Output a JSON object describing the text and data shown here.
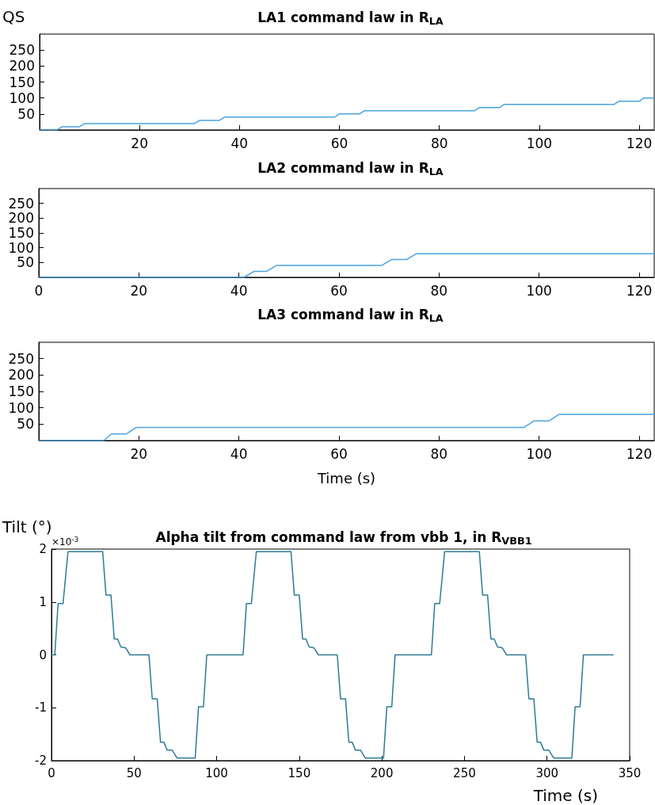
{
  "chart_data": [
    {
      "type": "line",
      "title": "LA1 command law in R$_{LA}$",
      "ylabel": "QS",
      "color": "#4aa3df",
      "line_style": "solid",
      "marker": "none",
      "grid": false,
      "x": [
        0,
        3.5,
        4.5,
        8,
        9,
        31,
        32,
        36,
        37,
        59,
        60,
        64,
        65,
        87,
        88,
        92,
        93,
        115,
        116,
        120,
        121,
        123
      ],
      "values": [
        0,
        0,
        10,
        10,
        20,
        20,
        30,
        30,
        40,
        40,
        50,
        50,
        60,
        60,
        70,
        70,
        80,
        80,
        90,
        90,
        100,
        100
      ],
      "xlim": [
        0,
        123
      ],
      "xticks": [
        20,
        40,
        60,
        80,
        100,
        120
      ],
      "ylim": [
        0,
        300
      ],
      "yticks": [
        50,
        100,
        150,
        200,
        250
      ]
    },
    {
      "type": "line",
      "title": "LA2 command law in R$_{LA}$",
      "color": "#4aa3df",
      "line_style": "solid",
      "marker": "none",
      "grid": false,
      "x": [
        0,
        41,
        43,
        45.5,
        47.5,
        68.5,
        70.5,
        73.5,
        75.5,
        123
      ],
      "values": [
        0,
        0,
        20,
        20,
        40,
        40,
        60,
        60,
        80,
        80
      ],
      "xlim": [
        0,
        123
      ],
      "xticks": [
        0,
        20,
        40,
        60,
        80,
        100,
        120
      ],
      "ylim": [
        0,
        300
      ],
      "yticks": [
        50,
        100,
        150,
        200,
        250
      ]
    },
    {
      "type": "line",
      "title": "LA3 command law in R$_{LA}$",
      "xlabel": "Time (s)",
      "color": "#4aa3df",
      "line_style": "solid",
      "marker": "none",
      "grid": false,
      "x": [
        0,
        13,
        14.5,
        17.5,
        19.5,
        97,
        99,
        102,
        104,
        123
      ],
      "values": [
        0,
        0,
        20,
        20,
        40,
        40,
        60,
        60,
        80,
        80
      ],
      "xlim": [
        0,
        123
      ],
      "xticks": [
        20,
        40,
        60,
        80,
        100,
        120
      ],
      "ylim": [
        0,
        300
      ],
      "yticks": [
        50,
        100,
        150,
        200,
        250
      ]
    },
    {
      "type": "line",
      "title": "Alpha tilt from command law from vbb 1, in R$_{VBB1}$",
      "ylabel": "Tilt (°)",
      "xlabel": "Time (s)",
      "annotations": [
        "×10$^{-3}$"
      ],
      "color": "#2f7a96",
      "line_style": "solid",
      "marker": "none",
      "grid": false,
      "x": [
        0,
        2,
        4,
        7,
        10,
        31,
        33,
        36,
        38,
        40,
        42,
        45,
        47.5,
        59,
        61,
        64,
        66,
        68,
        70,
        73,
        76,
        87,
        89,
        92,
        94,
        116,
        118,
        121,
        124,
        145,
        147,
        150,
        152,
        154,
        156,
        159,
        161.5,
        173,
        175,
        178,
        180,
        182,
        184,
        187,
        190,
        201,
        203,
        206,
        208,
        230,
        232,
        235,
        238,
        259,
        261,
        264,
        266,
        268,
        270,
        273,
        275.5,
        287,
        289,
        292,
        294,
        296,
        298,
        301,
        304,
        315,
        317,
        320,
        322,
        340
      ],
      "values": [
        0,
        0,
        0.97,
        0.97,
        1.95,
        1.95,
        1.13,
        1.13,
        0.3,
        0.3,
        0.15,
        0.13,
        0,
        0,
        -0.83,
        -0.83,
        -1.65,
        -1.65,
        -1.8,
        -1.8,
        -1.95,
        -1.95,
        -0.98,
        -0.98,
        0,
        0,
        0.97,
        0.97,
        1.95,
        1.95,
        1.13,
        1.13,
        0.3,
        0.3,
        0.15,
        0.13,
        0,
        0,
        -0.83,
        -0.83,
        -1.65,
        -1.65,
        -1.8,
        -1.8,
        -1.95,
        -1.95,
        -0.98,
        -0.98,
        0,
        0,
        0.97,
        0.97,
        1.95,
        1.95,
        1.13,
        1.13,
        0.3,
        0.3,
        0.15,
        0.13,
        0,
        0,
        -0.83,
        -0.83,
        -1.65,
        -1.65,
        -1.8,
        -1.8,
        -1.95,
        -1.95,
        -0.98,
        -0.98,
        0,
        0
      ],
      "xlim": [
        0,
        350
      ],
      "xticks": [
        0,
        50,
        100,
        150,
        200,
        250,
        300,
        350
      ],
      "ylim": [
        -2,
        2
      ],
      "yticks": [
        -2,
        -1,
        0,
        1,
        2
      ]
    }
  ]
}
